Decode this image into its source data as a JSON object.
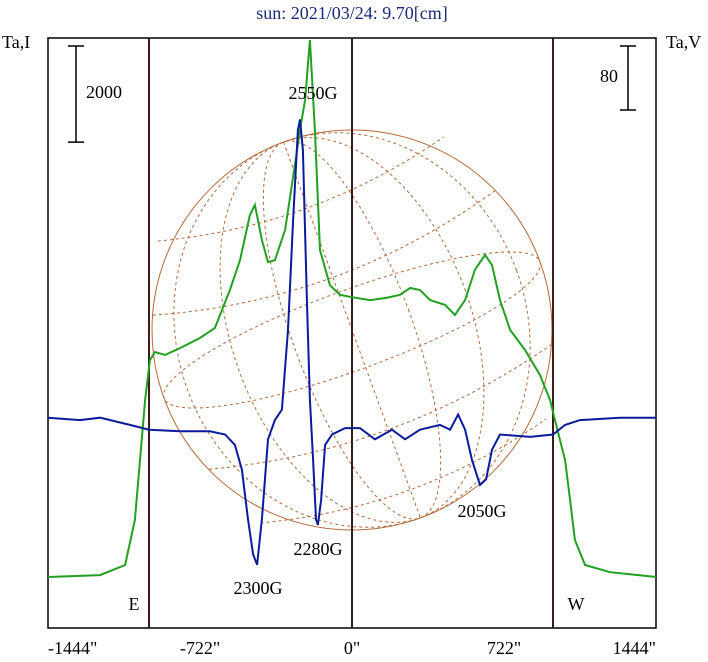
{
  "chart_data": {
    "type": "line",
    "title": "sun: 2021/03/24: 9.70[cm]",
    "y_label": "Ta,I",
    "y2_label": "Ta,V",
    "xlim": [
      -1444,
      1444
    ],
    "xticks": [
      {
        "value": -1444,
        "label": "-1444\""
      },
      {
        "value": -722,
        "label": "-722\""
      },
      {
        "value": 0,
        "label": "0\""
      },
      {
        "value": 722,
        "label": "722\""
      },
      {
        "value": 1444,
        "label": "1444\""
      }
    ],
    "ylim": [
      -1060,
      11210
    ],
    "y2lim": [
      -248,
      490
    ],
    "scale_bar": {
      "value": 2000,
      "label": "2000"
    },
    "scale_bar2": {
      "value": 80,
      "label": "80"
    },
    "limb_labels": [
      "E",
      "W"
    ],
    "annotations": [
      "2550G",
      "2300G",
      "2280G",
      "2050G"
    ],
    "series": [
      {
        "color": "#22a022",
        "x": [
          -1444,
          -1197,
          -1078,
          -1031,
          -1007,
          -983,
          -960,
          -936,
          -888,
          -817,
          -722,
          -651,
          -580,
          -532,
          -485,
          -461,
          -428,
          -399,
          -366,
          -318,
          -271,
          -247,
          -223,
          -200,
          -176,
          -152,
          -105,
          -57,
          0,
          86,
          157,
          228,
          276,
          323,
          371,
          442,
          489,
          537,
          584,
          632,
          665,
          703,
          751,
          822,
          893,
          941,
          964,
          1012,
          1036,
          1059,
          1107,
          1226,
          1444
        ],
        "values": [
          0,
          40,
          250,
          1190,
          2430,
          3680,
          4510,
          4680,
          4620,
          4760,
          4970,
          5180,
          5970,
          6590,
          7530,
          7740,
          7010,
          6550,
          6590,
          7220,
          8570,
          9300,
          9920,
          11170,
          9300,
          6800,
          6070,
          5870,
          5820,
          5760,
          5800,
          5870,
          6010,
          5970,
          5760,
          5660,
          5450,
          5760,
          6390,
          6700,
          6490,
          5760,
          5140,
          4720,
          4200,
          3680,
          3270,
          2430,
          1600,
          770,
          250,
          100,
          0
        ]
      },
      {
        "color": "#0a1a9c",
        "axis": "y2",
        "x": [
          -1444,
          -1292,
          -1197,
          -1055,
          -964,
          -817,
          -675,
          -603,
          -556,
          -523,
          -494,
          -470,
          -451,
          -428,
          -399,
          -366,
          -333,
          -304,
          -280,
          -257,
          -247,
          -233,
          -214,
          -200,
          -185,
          -171,
          -162,
          -147,
          -128,
          -95,
          -33,
          38,
          109,
          190,
          252,
          323,
          418,
          466,
          504,
          537,
          570,
          608,
          637,
          665,
          703,
          846,
          955,
          1012,
          1083,
          1273,
          1444
        ],
        "values": [
          15,
          12,
          15,
          6,
          0,
          -2,
          -2,
          -6,
          -19,
          -50,
          -112,
          -156,
          -169,
          -112,
          -12,
          12,
          25,
          125,
          262,
          375,
          388,
          350,
          162,
          38,
          -38,
          -112,
          -119,
          -88,
          -19,
          -6,
          2,
          2,
          -12,
          0,
          -12,
          0,
          6,
          0,
          19,
          0,
          -38,
          -69,
          -62,
          -25,
          -6,
          -9,
          -6,
          6,
          12,
          15,
          15
        ]
      }
    ]
  }
}
